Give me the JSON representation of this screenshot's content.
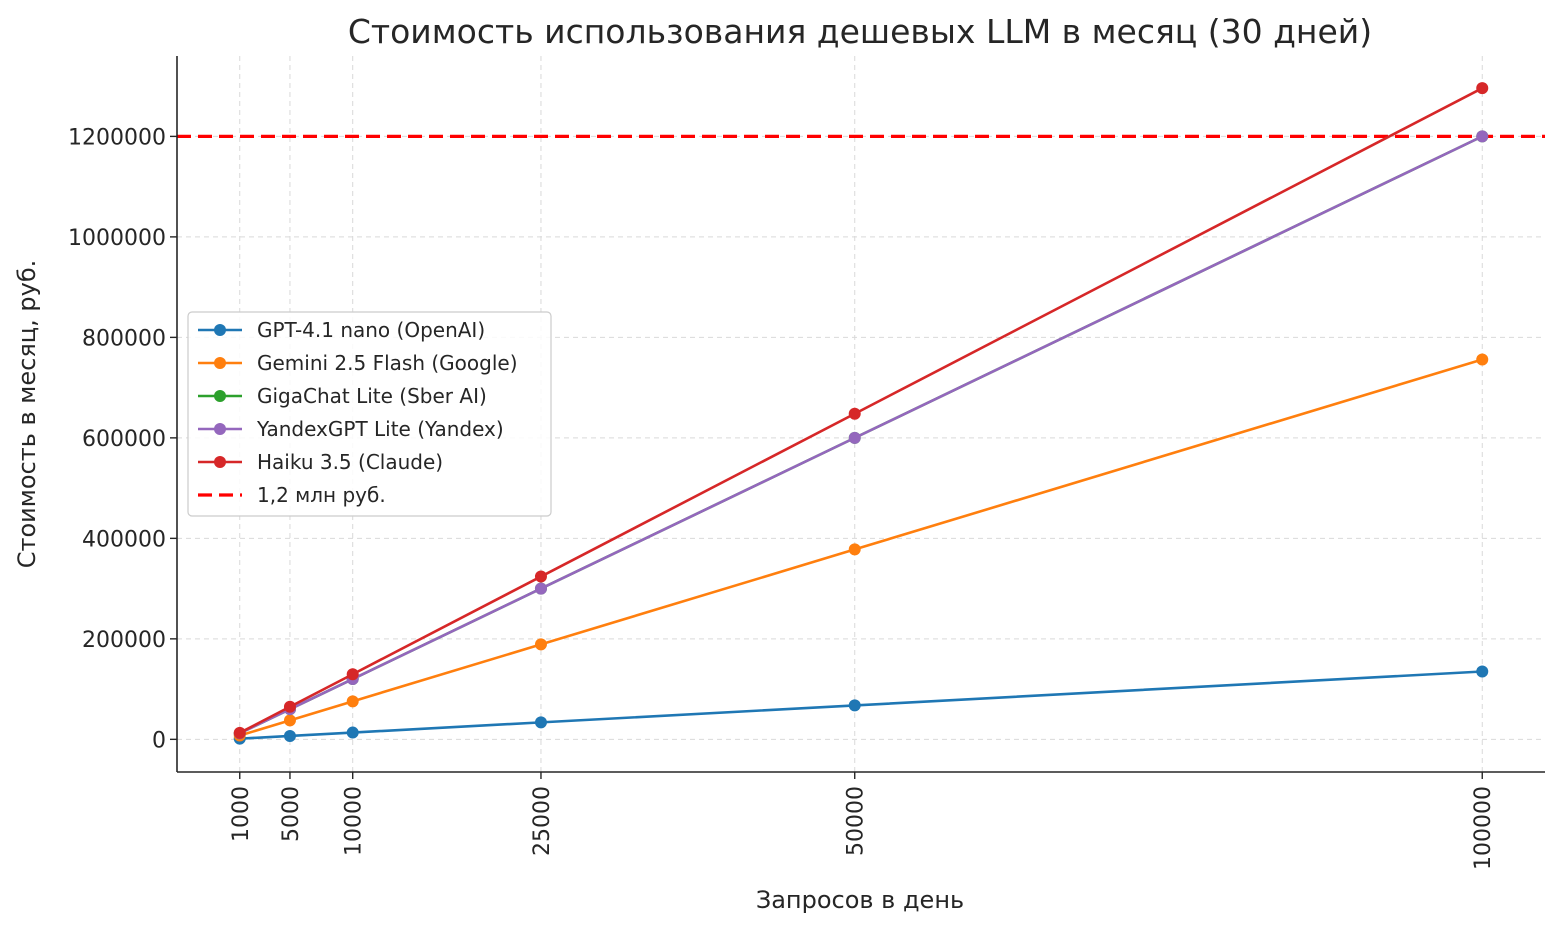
{
  "chart_data": {
    "type": "line",
    "title": "Стоимость использования дешевых LLM в месяц (30 дней)",
    "xlabel": "Запросов в день",
    "ylabel": "Стоимость в месяц, руб.",
    "x": [
      1000,
      5000,
      10000,
      25000,
      50000,
      100000
    ],
    "x_tick_labels": [
      "1000",
      "5000",
      "10000",
      "25000",
      "50000",
      "100000"
    ],
    "y_ticks": [
      0,
      200000,
      400000,
      600000,
      800000,
      1000000,
      1200000
    ],
    "y_tick_labels": [
      "0",
      "200000",
      "400000",
      "600000",
      "800000",
      "1000000",
      "1200000"
    ],
    "xlim": [
      -4000,
      105000
    ],
    "ylim": [
      -65000,
      1360000
    ],
    "grid": true,
    "legend_position": "center-left",
    "series": [
      {
        "name": "GPT-4.1 nano (OpenAI)",
        "color": "#1f77b4",
        "values": [
          1350,
          6750,
          13500,
          33750,
          67500,
          135000
        ]
      },
      {
        "name": "Gemini 2.5 Flash (Google)",
        "color": "#ff7f0e",
        "values": [
          7560,
          37800,
          75600,
          189000,
          378000,
          756000
        ]
      },
      {
        "name": "GigaChat Lite (Sber AI)",
        "color": "#2ca02c",
        "values": [
          12000,
          60000,
          120000,
          300000,
          600000,
          1200000
        ]
      },
      {
        "name": "YandexGPT Lite (Yandex)",
        "color": "#9467bd",
        "values": [
          12000,
          60000,
          120000,
          300000,
          600000,
          1200000
        ]
      },
      {
        "name": "Haiku 3.5 (Claude)",
        "color": "#d62728",
        "values": [
          12960,
          64800,
          129600,
          324000,
          648000,
          1296000
        ]
      }
    ],
    "reference_line": {
      "name": "1,2 млн руб.",
      "value": 1200000,
      "color": "#ff0000"
    }
  }
}
